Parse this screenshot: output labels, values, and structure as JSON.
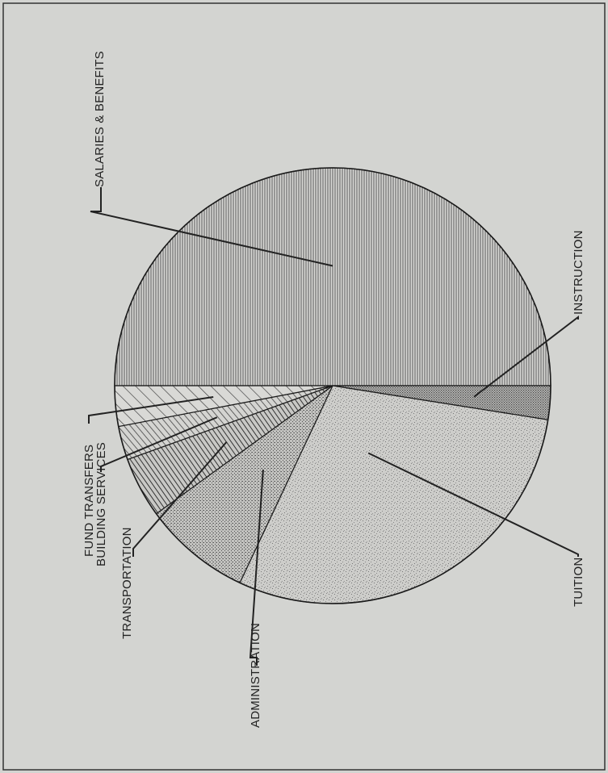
{
  "chart_data": {
    "type": "pie",
    "categories": [
      "SALARIES & BENEFITS",
      "INSTRUCTION",
      "TUITION",
      "ADMINISTRATION",
      "TRANSPORTATION",
      "BUILDING SERVICES",
      "FUND TRANSFERS"
    ],
    "values": [
      50,
      2.5,
      29.5,
      8,
      4.5,
      2.5,
      3
    ],
    "labels": [
      "SALARIES & BENEFITS",
      "INSTRUCTION",
      "TUITION",
      "ADMINISTRATION",
      "TRANSPORTATION",
      "BUILDING SERVICES",
      "FUND TRANSFERS"
    ],
    "start_angle_deg": 180,
    "direction": "counterclockwise",
    "label_orientation": "rotated-90",
    "fills": [
      "vertical-lines",
      "dense-dots",
      "light-stipple",
      "medium-stipple",
      "dense-diagonal",
      "medium-diagonal",
      "sparse-diagonal"
    ]
  }
}
